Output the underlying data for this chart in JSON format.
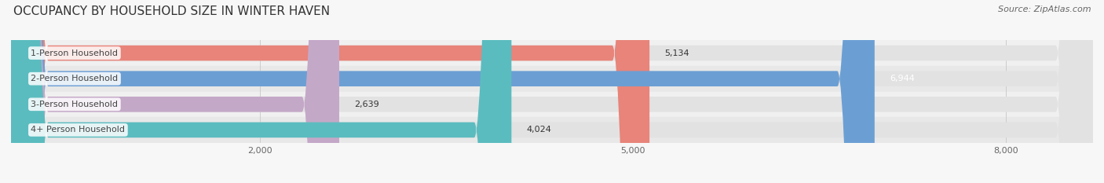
{
  "title": "OCCUPANCY BY HOUSEHOLD SIZE IN WINTER HAVEN",
  "source": "Source: ZipAtlas.com",
  "categories": [
    "1-Person Household",
    "2-Person Household",
    "3-Person Household",
    "4+ Person Household"
  ],
  "values": [
    5134,
    6944,
    2639,
    4024
  ],
  "bar_colors": [
    "#e8847a",
    "#6b9fd4",
    "#c4a8c8",
    "#5bbcbf"
  ],
  "value_colors": [
    "#333333",
    "#ffffff",
    "#333333",
    "#333333"
  ],
  "xlim": [
    0,
    8700
  ],
  "xticks": [
    2000,
    5000,
    8000
  ],
  "xtick_labels": [
    "2,000",
    "5,000",
    "8,000"
  ],
  "background_color": "#f7f7f7",
  "bar_bg_color": "#e2e2e2",
  "row_bg_colors": [
    "#f0f0f0",
    "#e8e8e8",
    "#f0f0f0",
    "#e8e8e8"
  ],
  "title_fontsize": 11,
  "source_fontsize": 8,
  "label_fontsize": 8,
  "value_fontsize": 8,
  "bar_height": 0.6
}
